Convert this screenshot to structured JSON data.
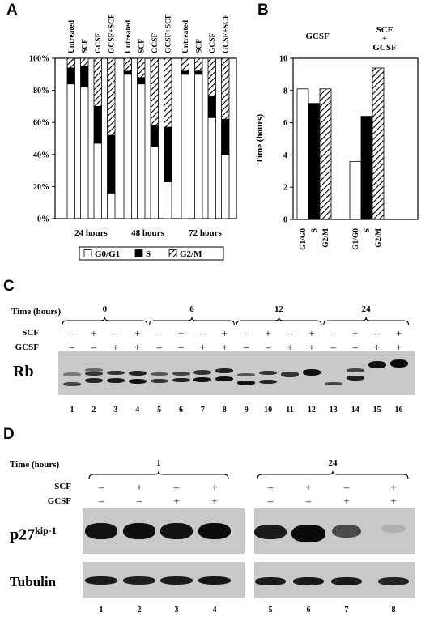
{
  "panels": {
    "A": "A",
    "B": "B",
    "C": "C",
    "D": "D"
  },
  "panel_a": {
    "chart_data": {
      "type": "bar",
      "stacked": true,
      "categories": [
        "Untreated",
        "SCF",
        "GCSF",
        "GCSF+SCF"
      ],
      "groups": [
        "24 hours",
        "48 hours",
        "72 hours"
      ],
      "series": [
        {
          "name": "G0/G1",
          "fill": "white",
          "values": [
            [
              84,
              82,
              47,
              16
            ],
            [
              90,
              84,
              45,
              23
            ],
            [
              90,
              90,
              63,
              40
            ]
          ]
        },
        {
          "name": "S",
          "fill": "black",
          "values": [
            [
              10,
              13,
              23,
              36
            ],
            [
              2,
              4,
              13,
              34
            ],
            [
              2,
              2,
              13,
              22
            ]
          ]
        },
        {
          "name": "G2/M",
          "fill": "hatched",
          "values": [
            [
              6,
              5,
              30,
              48
            ],
            [
              8,
              12,
              42,
              43
            ],
            [
              8,
              8,
              24,
              38
            ]
          ]
        }
      ],
      "yticks": [
        "0%",
        "20%",
        "40%",
        "60%",
        "80%",
        "100%"
      ],
      "ylim": [
        0,
        100
      ],
      "legend": [
        "G0/G1",
        "S",
        "G2/M"
      ],
      "legend_position": "bottom"
    }
  },
  "panel_b": {
    "chart_data": {
      "type": "bar",
      "group_labels": [
        "GCSF",
        "SCF + GCSF"
      ],
      "categories": [
        "G1/G0",
        "S",
        "G2/M"
      ],
      "series_fills": [
        "white",
        "black",
        "hatched"
      ],
      "values": [
        [
          8.1,
          7.2,
          8.1
        ],
        [
          3.6,
          6.4,
          9.4
        ]
      ],
      "ylabel": "Time (hours)",
      "ylim": [
        0,
        10
      ],
      "yticks": [
        "0",
        "2",
        "4",
        "6",
        "8",
        "10"
      ]
    }
  },
  "panel_c": {
    "time_label": "Time (hours)",
    "time_groups": [
      "0",
      "6",
      "12",
      "24"
    ],
    "row_labels": [
      "SCF",
      "GCSF"
    ],
    "scf_signs": [
      "–",
      "+",
      "–",
      "+",
      "–",
      "+",
      "–",
      "+",
      "–",
      "+",
      "–",
      "+",
      "–",
      "+",
      "–",
      "+"
    ],
    "gcsf_signs": [
      "–",
      "–",
      "+",
      "+",
      "–",
      "–",
      "+",
      "+",
      "–",
      "–",
      "+",
      "+",
      "–",
      "–",
      "+",
      "+"
    ],
    "blot_label": "Rb",
    "lanes": [
      "1",
      "2",
      "3",
      "4",
      "5",
      "6",
      "7",
      "8",
      "9",
      "10",
      "11",
      "12",
      "13",
      "14",
      "15",
      "16"
    ]
  },
  "panel_d": {
    "time_label": "Time (hours)",
    "time_groups": [
      "1",
      "24"
    ],
    "row_labels": [
      "SCF",
      "GCSF"
    ],
    "scf_signs": [
      "–",
      "+",
      "–",
      "+",
      "–",
      "+",
      "–",
      "+"
    ],
    "gcsf_signs": [
      "–",
      "–",
      "+",
      "+",
      "–",
      "–",
      "+",
      "+"
    ],
    "blot_label_main": "p27",
    "blot_label_sup": "kip-1",
    "blot2_label": "Tubulin",
    "lanes": [
      "1",
      "2",
      "3",
      "4",
      "5",
      "6",
      "7",
      "8"
    ]
  }
}
